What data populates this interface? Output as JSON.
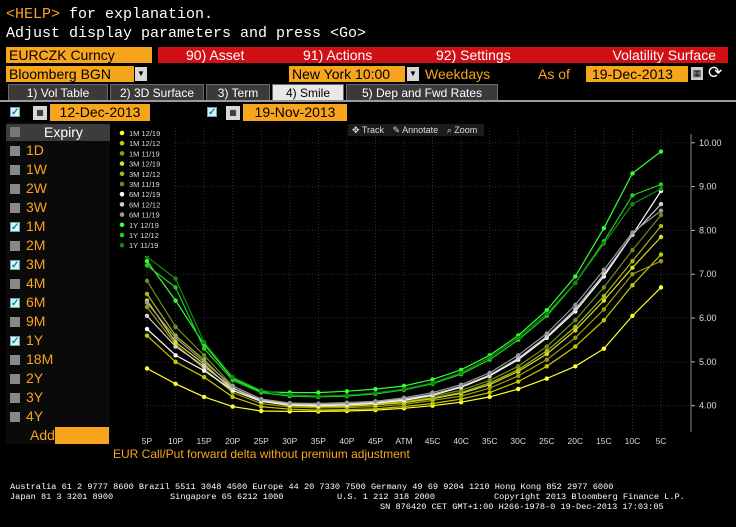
{
  "help_line": {
    "key": "<HELP>",
    "text": " for explanation."
  },
  "subtitle": "Adjust display parameters and press <Go>",
  "menu": {
    "ticker": "EURCZK Curncy",
    "asset": "90) Asset",
    "actions": "91) Actions",
    "settings": "92) Settings",
    "title": "Volatility Surface"
  },
  "params": {
    "source": "Bloomberg BGN",
    "time": "New York 10:00",
    "days": "Weekdays",
    "as_of_label": "As of",
    "as_of_date": "19-Dec-2013"
  },
  "tabs": [
    "1) Vol Table",
    "2) 3D Surface",
    "3) Term",
    "4) Smile",
    "5) Dep and Fwd Rates"
  ],
  "compare": {
    "date1": "12-Dec-2013",
    "date2": "19-Nov-2013"
  },
  "expiry": {
    "header": "Expiry",
    "items": [
      {
        "label": "1D",
        "checked": false
      },
      {
        "label": "1W",
        "checked": false
      },
      {
        "label": "2W",
        "checked": false
      },
      {
        "label": "3W",
        "checked": false
      },
      {
        "label": "1M",
        "checked": true
      },
      {
        "label": "2M",
        "checked": false
      },
      {
        "label": "3M",
        "checked": true
      },
      {
        "label": "4M",
        "checked": false
      },
      {
        "label": "6M",
        "checked": true
      },
      {
        "label": "9M",
        "checked": false
      },
      {
        "label": "1Y",
        "checked": true
      },
      {
        "label": "18M",
        "checked": false
      },
      {
        "label": "2Y",
        "checked": false
      },
      {
        "label": "3Y",
        "checked": false
      },
      {
        "label": "4Y",
        "checked": false
      }
    ],
    "add_label": "Add"
  },
  "chart_tools": {
    "track": "Track",
    "annotate": "Annotate",
    "zoom": "Zoom"
  },
  "chart_caption": "EUR Call/Put forward delta without premium adjustment",
  "chart_data": {
    "type": "line",
    "x": [
      "5P",
      "10P",
      "15P",
      "20P",
      "25P",
      "30P",
      "35P",
      "40P",
      "45P",
      "ATM",
      "45C",
      "40C",
      "35C",
      "30C",
      "25C",
      "20C",
      "15C",
      "10C",
      "5C"
    ],
    "ylim": [
      3.4,
      10.2
    ],
    "yticks": [
      "4.00",
      "5.00",
      "6.00",
      "7.00",
      "8.00",
      "9.00",
      "10.00"
    ],
    "legend_position": "top-left",
    "series": [
      {
        "name": "1M 12/19",
        "color": "#ffff33",
        "values": [
          4.85,
          4.5,
          4.2,
          3.98,
          3.88,
          3.87,
          3.87,
          3.88,
          3.9,
          3.94,
          4.0,
          4.08,
          4.2,
          4.38,
          4.62,
          4.9,
          5.3,
          6.05,
          6.7
        ]
      },
      {
        "name": "1M 12/12",
        "color": "#c8c800",
        "values": [
          5.6,
          5.0,
          4.65,
          4.2,
          3.98,
          3.92,
          3.9,
          3.91,
          3.93,
          3.98,
          4.05,
          4.15,
          4.3,
          4.55,
          4.9,
          5.35,
          5.95,
          6.75,
          7.45
        ]
      },
      {
        "name": "1M 11/19",
        "color": "#9a9a10",
        "values": [
          6.25,
          5.4,
          4.85,
          4.3,
          4.05,
          3.97,
          3.95,
          3.96,
          3.98,
          4.03,
          4.12,
          4.22,
          4.4,
          4.68,
          5.05,
          5.55,
          6.2,
          7.0,
          7.3
        ]
      },
      {
        "name": "3M 12/19",
        "color": "#dddd22",
        "values": [
          6.4,
          5.45,
          4.95,
          4.35,
          4.1,
          4.0,
          3.98,
          3.99,
          4.02,
          4.07,
          4.16,
          4.28,
          4.48,
          4.78,
          5.18,
          5.72,
          6.4,
          7.15,
          7.85
        ]
      },
      {
        "name": "3M 12/12",
        "color": "#a8b820",
        "values": [
          6.55,
          5.6,
          5.05,
          4.4,
          4.12,
          4.03,
          4.0,
          4.01,
          4.04,
          4.09,
          4.18,
          4.3,
          4.52,
          4.82,
          5.25,
          5.8,
          6.5,
          7.3,
          8.1
        ]
      },
      {
        "name": "3M 11/19",
        "color": "#6f8f1a",
        "values": [
          6.85,
          5.8,
          5.15,
          4.45,
          4.15,
          4.06,
          4.03,
          4.04,
          4.07,
          4.12,
          4.22,
          4.35,
          4.58,
          4.9,
          5.35,
          5.95,
          6.7,
          7.55,
          8.35
        ]
      },
      {
        "name": "6M 12/19",
        "color": "#ffffff",
        "values": [
          5.75,
          5.15,
          4.8,
          4.35,
          4.1,
          4.02,
          4.0,
          4.02,
          4.06,
          4.12,
          4.24,
          4.42,
          4.68,
          5.05,
          5.55,
          6.15,
          6.95,
          7.9,
          8.9
        ]
      },
      {
        "name": "6M 12/12",
        "color": "#d0d0d0",
        "values": [
          6.05,
          5.35,
          4.9,
          4.4,
          4.12,
          4.04,
          4.02,
          4.04,
          4.08,
          4.15,
          4.26,
          4.44,
          4.7,
          5.08,
          5.58,
          6.2,
          7.0,
          7.9,
          8.6
        ]
      },
      {
        "name": "6M 11/19",
        "color": "#9a9a9a",
        "values": [
          6.35,
          5.55,
          5.0,
          4.45,
          4.15,
          4.06,
          4.05,
          4.07,
          4.1,
          4.18,
          4.3,
          4.48,
          4.75,
          5.15,
          5.65,
          6.3,
          7.1,
          7.95,
          8.45
        ]
      },
      {
        "name": "1Y 12/19",
        "color": "#33ff33",
        "values": [
          7.3,
          6.4,
          5.4,
          4.62,
          4.32,
          4.3,
          4.3,
          4.33,
          4.38,
          4.45,
          4.6,
          4.82,
          5.15,
          5.6,
          6.18,
          6.95,
          8.05,
          9.3,
          9.8
        ]
      },
      {
        "name": "1Y 12/12",
        "color": "#22cc22",
        "values": [
          7.2,
          6.7,
          5.3,
          4.58,
          4.3,
          4.22,
          4.2,
          4.22,
          4.27,
          4.36,
          4.5,
          4.72,
          5.05,
          5.5,
          6.05,
          6.8,
          7.75,
          8.8,
          9.05
        ]
      },
      {
        "name": "1Y 11/19",
        "color": "#128a12",
        "values": [
          7.4,
          6.9,
          5.45,
          4.65,
          4.35,
          4.25,
          4.22,
          4.24,
          4.29,
          4.38,
          4.52,
          4.75,
          5.1,
          5.55,
          6.1,
          6.8,
          7.7,
          8.6,
          8.95
        ]
      }
    ]
  },
  "footer": {
    "line1": "Australia 61 2 9777 8600 Brazil 5511 3048 4500 Europe 44 20 7330 7500 Germany 49 69 9204 1210 Hong Kong 852 2977 6000",
    "line2a": "Japan 81 3 3201 8900",
    "line2b": "Singapore 65 6212 1000",
    "line2c": "U.S. 1 212 318 2000",
    "line2d": "Copyright 2013 Bloomberg Finance L.P.",
    "line3": "SN 876420 CET  GMT+1:00 H266-1978-0 19-Dec-2013 17:03:05"
  }
}
